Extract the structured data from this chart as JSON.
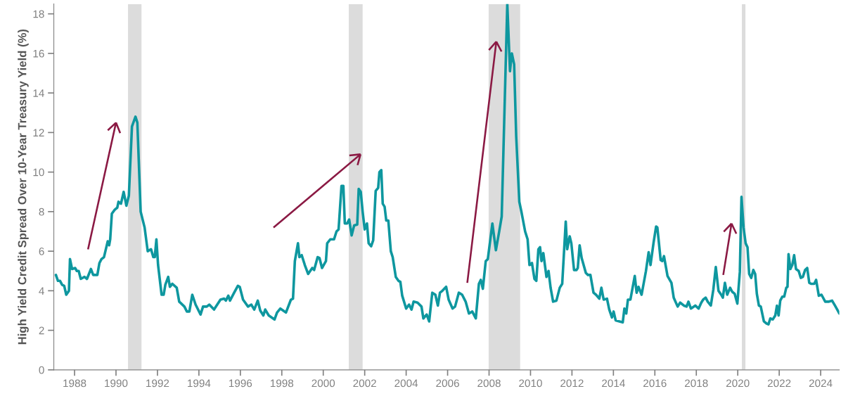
{
  "chart_data": {
    "type": "line",
    "ylabel": "High Yield Credit Spread Over 10-Year Treasury Yield (%)",
    "xlim": [
      1987.0,
      2024.9
    ],
    "xticks": [
      1988,
      1990,
      1992,
      1994,
      1996,
      1998,
      2000,
      2002,
      2004,
      2006,
      2008,
      2010,
      2012,
      2014,
      2016,
      2018,
      2020,
      2022,
      2024
    ],
    "ylim": [
      0,
      18.5
    ],
    "yticks": [
      0,
      2,
      4,
      6,
      8,
      10,
      12,
      14,
      16,
      18
    ],
    "grid": false,
    "legend": false,
    "bands": [
      {
        "axis": "x",
        "from": 1990.58,
        "to": 1991.23,
        "color": "#dcdcdc"
      },
      {
        "axis": "x",
        "from": 2001.23,
        "to": 2001.9,
        "color": "#dcdcdc"
      },
      {
        "axis": "x",
        "from": 2007.98,
        "to": 2009.5,
        "color": "#dcdcdc"
      },
      {
        "axis": "x",
        "from": 2020.2,
        "to": 2020.37,
        "color": "#dcdcdc"
      }
    ],
    "series": [
      {
        "color": "#0e979f",
        "x": [
          1987.1,
          1987.2,
          1987.3,
          1987.4,
          1987.5,
          1987.6,
          1987.73,
          1987.78,
          1987.88,
          1988.03,
          1988.11,
          1988.2,
          1988.3,
          1988.48,
          1988.6,
          1988.79,
          1988.9,
          1989.1,
          1989.2,
          1989.3,
          1989.42,
          1989.6,
          1989.67,
          1989.72,
          1989.8,
          1989.94,
          1990.06,
          1990.12,
          1990.24,
          1990.37,
          1990.5,
          1990.62,
          1990.77,
          1990.94,
          1991.03,
          1991.19,
          1991.38,
          1991.53,
          1991.69,
          1991.8,
          1991.87,
          1991.95,
          1992.03,
          1992.2,
          1992.3,
          1992.38,
          1992.52,
          1992.6,
          1992.72,
          1992.93,
          1993.05,
          1993.3,
          1993.42,
          1993.54,
          1993.68,
          1993.84,
          1994.08,
          1994.2,
          1994.38,
          1994.5,
          1994.73,
          1995.04,
          1995.22,
          1995.3,
          1995.42,
          1995.5,
          1995.7,
          1995.88,
          1995.97,
          1996.13,
          1996.37,
          1996.53,
          1996.67,
          1996.84,
          1996.96,
          1997.11,
          1997.2,
          1997.37,
          1997.65,
          1997.77,
          1997.93,
          1998.2,
          1998.44,
          1998.54,
          1998.63,
          1998.78,
          1998.85,
          1998.96,
          1999.11,
          1999.27,
          1999.47,
          1999.56,
          1999.73,
          1999.82,
          1999.94,
          2000.13,
          2000.19,
          2000.34,
          2000.52,
          2000.64,
          2000.74,
          2000.88,
          2000.97,
          2001.04,
          2001.15,
          2001.25,
          2001.37,
          2001.49,
          2001.64,
          2001.71,
          2001.81,
          2001.9,
          2002.0,
          2002.11,
          2002.19,
          2002.31,
          2002.41,
          2002.53,
          2002.65,
          2002.71,
          2002.8,
          2002.87,
          2002.96,
          2003.04,
          2003.14,
          2003.26,
          2003.35,
          2003.5,
          2003.63,
          2003.72,
          2003.81,
          2004.0,
          2004.14,
          2004.26,
          2004.36,
          2004.55,
          2004.74,
          2004.83,
          2004.99,
          2005.11,
          2005.26,
          2005.41,
          2005.53,
          2005.63,
          2005.75,
          2005.93,
          2006.05,
          2006.24,
          2006.36,
          2006.54,
          2006.7,
          2006.87,
          2007.03,
          2007.19,
          2007.36,
          2007.51,
          2007.6,
          2007.7,
          2007.84,
          2007.94,
          2008.16,
          2008.33,
          2008.49,
          2008.61,
          2008.88,
          2009.01,
          2009.1,
          2009.21,
          2009.31,
          2009.46,
          2009.56,
          2009.74,
          2009.86,
          2009.95,
          2010.07,
          2010.19,
          2010.28,
          2010.38,
          2010.46,
          2010.53,
          2010.62,
          2010.77,
          2010.87,
          2010.97,
          2011.09,
          2011.25,
          2011.41,
          2011.53,
          2011.7,
          2011.77,
          2011.89,
          2011.97,
          2012.1,
          2012.22,
          2012.28,
          2012.37,
          2012.47,
          2012.67,
          2012.77,
          2012.89,
          2013.04,
          2013.16,
          2013.32,
          2013.42,
          2013.53,
          2013.69,
          2013.8,
          2013.93,
          2014.01,
          2014.11,
          2014.29,
          2014.45,
          2014.53,
          2014.62,
          2014.7,
          2014.82,
          2015.03,
          2015.12,
          2015.21,
          2015.36,
          2015.57,
          2015.7,
          2015.79,
          2015.94,
          2016.06,
          2016.12,
          2016.28,
          2016.36,
          2016.44,
          2016.61,
          2016.8,
          2016.91,
          2017.1,
          2017.22,
          2017.4,
          2017.53,
          2017.62,
          2017.74,
          2017.95,
          2018.11,
          2018.24,
          2018.33,
          2018.45,
          2018.55,
          2018.7,
          2018.82,
          2018.94,
          2019.07,
          2019.2,
          2019.28,
          2019.38,
          2019.49,
          2019.63,
          2019.73,
          2019.85,
          2019.98,
          2020.1,
          2020.18,
          2020.28,
          2020.38,
          2020.47,
          2020.55,
          2020.65,
          2020.75,
          2020.84,
          2020.92,
          2021.02,
          2021.11,
          2021.26,
          2021.38,
          2021.48,
          2021.57,
          2021.69,
          2021.81,
          2021.89,
          2021.97,
          2022.05,
          2022.15,
          2022.24,
          2022.34,
          2022.4,
          2022.45,
          2022.54,
          2022.63,
          2022.72,
          2022.81,
          2022.94,
          2023.04,
          2023.14,
          2023.25,
          2023.35,
          2023.45,
          2023.54,
          2023.69,
          2023.78,
          2023.91,
          2024.04,
          2024.22,
          2024.4,
          2024.55,
          2024.69,
          2024.85,
          2024.9
        ],
        "values": [
          4.8,
          4.5,
          4.5,
          4.3,
          4.25,
          3.8,
          4.0,
          5.6,
          5.1,
          5.15,
          5.0,
          5.0,
          4.6,
          4.7,
          4.6,
          5.1,
          4.8,
          4.8,
          5.4,
          5.6,
          5.7,
          6.5,
          6.3,
          6.6,
          7.9,
          8.1,
          8.2,
          8.5,
          8.4,
          9.0,
          8.3,
          8.8,
          12.3,
          12.8,
          12.5,
          8.0,
          7.2,
          6.0,
          6.1,
          5.7,
          5.7,
          6.6,
          5.3,
          3.8,
          3.8,
          4.3,
          4.7,
          4.2,
          4.35,
          4.15,
          3.45,
          3.2,
          2.95,
          2.95,
          3.8,
          3.3,
          2.8,
          3.2,
          3.2,
          3.3,
          3.05,
          3.55,
          3.6,
          3.5,
          3.75,
          3.5,
          3.9,
          4.25,
          4.2,
          3.55,
          3.2,
          3.3,
          3.05,
          3.5,
          3.0,
          2.75,
          3.05,
          2.75,
          2.55,
          2.9,
          3.1,
          2.9,
          3.55,
          3.6,
          5.5,
          6.4,
          5.7,
          5.8,
          5.3,
          4.85,
          5.15,
          5.05,
          5.7,
          5.65,
          5.15,
          5.5,
          6.4,
          6.6,
          6.6,
          7.0,
          7.1,
          9.3,
          9.3,
          7.4,
          7.4,
          7.6,
          6.8,
          7.3,
          7.35,
          9.15,
          9.0,
          8.0,
          7.1,
          7.4,
          6.4,
          6.25,
          6.55,
          9.05,
          9.2,
          10.0,
          10.1,
          8.4,
          8.25,
          7.55,
          7.55,
          6.0,
          5.7,
          4.7,
          4.5,
          4.45,
          3.75,
          3.1,
          3.3,
          3.05,
          3.45,
          3.4,
          3.2,
          2.6,
          2.8,
          2.45,
          3.9,
          3.8,
          3.25,
          3.9,
          4.0,
          4.2,
          3.55,
          3.1,
          3.2,
          3.9,
          3.8,
          3.45,
          2.85,
          2.95,
          2.6,
          4.35,
          4.55,
          4.1,
          5.5,
          5.6,
          7.4,
          6.05,
          7.0,
          7.75,
          18.5,
          15.1,
          16.0,
          15.45,
          11.8,
          8.5,
          8.0,
          7.0,
          6.6,
          5.3,
          5.4,
          4.6,
          4.5,
          6.1,
          6.2,
          5.5,
          5.9,
          4.7,
          5.0,
          4.15,
          3.45,
          3.5,
          4.15,
          4.35,
          7.5,
          6.1,
          6.75,
          6.4,
          5.05,
          5.05,
          5.15,
          6.3,
          5.65,
          4.9,
          4.8,
          4.8,
          3.9,
          3.8,
          3.6,
          4.15,
          3.55,
          3.6,
          3.05,
          2.65,
          2.95,
          2.5,
          2.45,
          2.4,
          3.1,
          2.85,
          3.55,
          3.55,
          4.75,
          3.9,
          4.2,
          3.8,
          5.0,
          5.95,
          5.3,
          6.45,
          7.25,
          7.2,
          5.55,
          5.5,
          5.75,
          4.75,
          4.4,
          3.65,
          3.2,
          3.4,
          3.25,
          3.2,
          3.45,
          3.1,
          3.25,
          3.1,
          3.4,
          3.55,
          3.65,
          3.45,
          3.25,
          4.05,
          5.2,
          4.0,
          3.8,
          3.65,
          4.4,
          3.8,
          4.15,
          3.95,
          3.85,
          3.35,
          4.95,
          8.75,
          7.2,
          6.4,
          6.2,
          4.85,
          4.65,
          5.05,
          4.85,
          3.85,
          3.25,
          3.2,
          2.45,
          2.35,
          2.3,
          2.6,
          2.55,
          2.75,
          3.25,
          2.75,
          3.5,
          3.7,
          3.7,
          4.15,
          4.2,
          5.85,
          5.1,
          5.3,
          5.8,
          5.1,
          5.0,
          4.65,
          4.7,
          5.05,
          5.15,
          4.4,
          4.35,
          4.35,
          4.55,
          3.75,
          3.8,
          3.45,
          3.45,
          3.5,
          3.25,
          2.95,
          2.85
        ]
      }
    ]
  }
}
